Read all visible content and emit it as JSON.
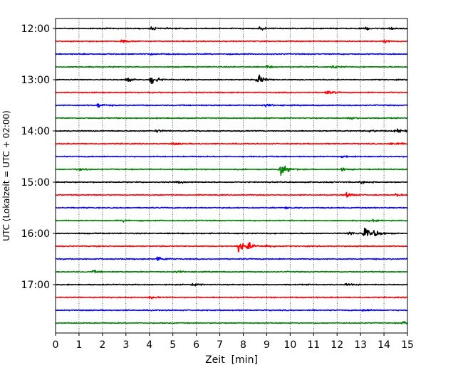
{
  "chart_data": {
    "type": "line",
    "subtype": "helicorder",
    "xlabel": "Zeit  [min]",
    "ylabel": "UTC (Lokalzeit = UTC + 02:00)",
    "xlim": [
      0,
      15
    ],
    "x_ticks": [
      0,
      1,
      2,
      3,
      4,
      5,
      6,
      7,
      8,
      9,
      10,
      11,
      12,
      13,
      14,
      15
    ],
    "x_tick_labels": [
      "0",
      "1",
      "2",
      "3",
      "4",
      "5",
      "6",
      "7",
      "8",
      "9",
      "10",
      "11",
      "12",
      "13",
      "14",
      "15"
    ],
    "x_grid": true,
    "y_tick_labels": [
      "12:00",
      "13:00",
      "14:00",
      "15:00",
      "16:00",
      "17:00"
    ],
    "trace_interval_minutes": 15,
    "trace_colors": [
      "#000000",
      "#ff0000",
      "#0000ff",
      "#008000"
    ],
    "traces": [
      {
        "start": "12:00",
        "events": [
          [
            4.1,
            1.0
          ],
          [
            8.7,
            1.2
          ],
          [
            13.2,
            1.0
          ],
          [
            14.2,
            1.0
          ]
        ]
      },
      {
        "start": "12:15",
        "events": [
          [
            2.8,
            1.2
          ],
          [
            14.0,
            0.8
          ]
        ]
      },
      {
        "start": "12:30",
        "events": [
          [
            4.0,
            0.8
          ]
        ]
      },
      {
        "start": "12:45",
        "events": [
          [
            9.0,
            1.0
          ],
          [
            11.8,
            1.2
          ]
        ]
      },
      {
        "start": "13:00",
        "events": [
          [
            3.0,
            1.6
          ],
          [
            4.05,
            4.0
          ],
          [
            8.6,
            4.5
          ]
        ]
      },
      {
        "start": "13:15",
        "events": [
          [
            11.5,
            1.8
          ]
        ]
      },
      {
        "start": "13:30",
        "events": [
          [
            1.8,
            1.6
          ],
          [
            8.9,
            1.0
          ]
        ]
      },
      {
        "start": "13:45",
        "events": [
          [
            12.5,
            0.9
          ]
        ]
      },
      {
        "start": "14:00",
        "events": [
          [
            4.3,
            0.9
          ],
          [
            13.3,
            1.2
          ],
          [
            14.5,
            2.2
          ]
        ]
      },
      {
        "start": "14:15",
        "events": [
          [
            5.0,
            0.9
          ],
          [
            14.3,
            1.4
          ]
        ]
      },
      {
        "start": "14:30",
        "events": [
          [
            12.2,
            0.8
          ]
        ]
      },
      {
        "start": "14:45",
        "events": [
          [
            0.9,
            1.6
          ],
          [
            9.6,
            5.0
          ],
          [
            12.2,
            1.2
          ]
        ]
      },
      {
        "start": "15:00",
        "events": [
          [
            5.2,
            0.9
          ],
          [
            13.0,
            0.9
          ]
        ]
      },
      {
        "start": "15:15",
        "events": [
          [
            12.4,
            2.0
          ],
          [
            14.5,
            1.0
          ]
        ]
      },
      {
        "start": "15:30",
        "events": [
          [
            9.8,
            0.8
          ]
        ]
      },
      {
        "start": "15:45",
        "events": [
          [
            2.9,
            0.8
          ],
          [
            13.4,
            0.9
          ]
        ]
      },
      {
        "start": "16:00",
        "events": [
          [
            12.5,
            1.4
          ],
          [
            13.15,
            4.5
          ],
          [
            13.6,
            2.2
          ]
        ]
      },
      {
        "start": "16:15",
        "events": [
          [
            7.8,
            4.8
          ],
          [
            8.2,
            2.4
          ],
          [
            9.0,
            1.2
          ]
        ]
      },
      {
        "start": "16:30",
        "events": [
          [
            4.35,
            2.2
          ]
        ]
      },
      {
        "start": "16:45",
        "events": [
          [
            1.6,
            0.9
          ],
          [
            5.1,
            0.8
          ]
        ]
      },
      {
        "start": "17:00",
        "events": [
          [
            5.8,
            0.9
          ],
          [
            12.4,
            0.8
          ]
        ]
      },
      {
        "start": "17:15",
        "events": [
          [
            4.0,
            0.8
          ]
        ]
      },
      {
        "start": "17:30",
        "events": [
          [
            13.1,
            0.8
          ]
        ]
      },
      {
        "start": "17:45",
        "events": [
          [
            14.8,
            1.0
          ]
        ]
      }
    ]
  }
}
